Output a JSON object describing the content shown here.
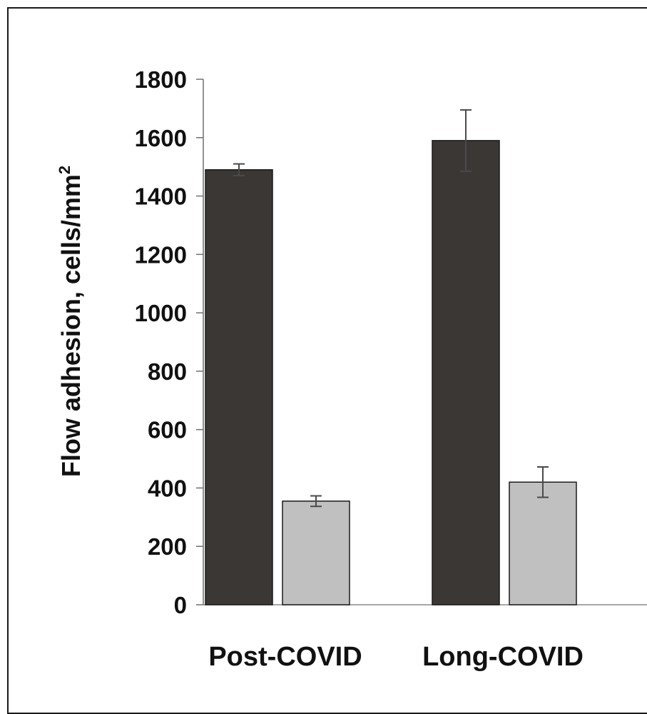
{
  "chart_data": {
    "type": "bar",
    "categories": [
      "Post-COVID",
      "Long-COVID"
    ],
    "series": [
      {
        "values": [
          1490,
          1590
        ],
        "errors": [
          20,
          105
        ],
        "color": "#3a3734"
      },
      {
        "values": [
          355,
          420
        ],
        "errors": [
          18,
          52
        ],
        "color": "#c0c0c0"
      }
    ],
    "ylabel": "Flow adhesion, cells/mm",
    "ylabel_superscript": "2",
    "ylim": [
      0,
      1800
    ],
    "yticks": [
      0,
      200,
      400,
      600,
      800,
      1000,
      1200,
      1400,
      1600,
      1800
    ],
    "grid": false,
    "legend": "none"
  }
}
